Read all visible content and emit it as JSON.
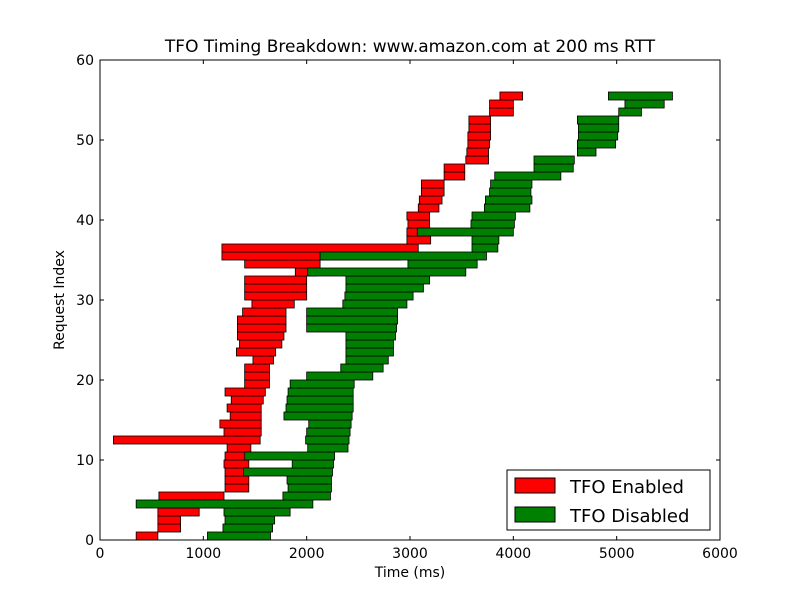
{
  "chart_data": {
    "type": "bar",
    "orientation": "horizontal",
    "title": "TFO Timing Breakdown: www.amazon.com at 200 ms RTT",
    "xlabel": "Time (ms)",
    "ylabel": "Request Index",
    "xlim": [
      0,
      6000
    ],
    "ylim": [
      0,
      60
    ],
    "xticks": [
      "0",
      "1000",
      "2000",
      "3000",
      "4000",
      "5000",
      "6000"
    ],
    "yticks": [
      "0",
      "10",
      "20",
      "30",
      "40",
      "50",
      "60"
    ],
    "grid": false,
    "legend_position": "bottom-right",
    "series": [
      {
        "name": "TFO Enabled",
        "color": "#ff0000",
        "bars": [
          [
            350,
            560
          ],
          [
            560,
            780
          ],
          [
            560,
            780
          ],
          [
            560,
            960
          ],
          [
            570,
            1200
          ],
          [
            570,
            1200
          ],
          [
            1210,
            1440
          ],
          [
            1210,
            1440
          ],
          [
            1210,
            1440
          ],
          [
            1200,
            1440
          ],
          [
            1210,
            1440
          ],
          [
            1230,
            1460
          ],
          [
            130,
            1550
          ],
          [
            1200,
            1560
          ],
          [
            1160,
            1560
          ],
          [
            1260,
            1560
          ],
          [
            1230,
            1560
          ],
          [
            1270,
            1580
          ],
          [
            1210,
            1600
          ],
          [
            1400,
            1640
          ],
          [
            1400,
            1640
          ],
          [
            1400,
            1640
          ],
          [
            1480,
            1680
          ],
          [
            1320,
            1700
          ],
          [
            1350,
            1760
          ],
          [
            1330,
            1780
          ],
          [
            1330,
            1800
          ],
          [
            1330,
            1800
          ],
          [
            1380,
            1800
          ],
          [
            1470,
            1880
          ],
          [
            1400,
            2000
          ],
          [
            1400,
            2000
          ],
          [
            1400,
            2000
          ],
          [
            1890,
            2100
          ],
          [
            1400,
            2130
          ],
          [
            1180,
            2910
          ],
          [
            1180,
            3080
          ],
          [
            2970,
            3200
          ],
          [
            2970,
            3200
          ],
          [
            2980,
            3190
          ],
          [
            2970,
            3190
          ],
          [
            3080,
            3280
          ],
          [
            3090,
            3310
          ],
          [
            3110,
            3330
          ],
          [
            3110,
            3330
          ],
          [
            3330,
            3530
          ],
          [
            3330,
            3530
          ],
          [
            3540,
            3760
          ],
          [
            3550,
            3760
          ],
          [
            3560,
            3770
          ],
          [
            3560,
            3780
          ],
          [
            3570,
            3780
          ],
          [
            3570,
            3780
          ],
          [
            3770,
            4000
          ],
          [
            3770,
            4000
          ],
          [
            3870,
            4090
          ]
        ]
      },
      {
        "name": "TFO Disabled",
        "color": "#008000",
        "bars": [
          [
            1040,
            1650
          ],
          [
            1190,
            1670
          ],
          [
            1210,
            1690
          ],
          [
            1200,
            1840
          ],
          [
            350,
            2060
          ],
          [
            1770,
            2230
          ],
          [
            1820,
            2240
          ],
          [
            1810,
            2240
          ],
          [
            1390,
            2250
          ],
          [
            1860,
            2260
          ],
          [
            1400,
            2270
          ],
          [
            2010,
            2400
          ],
          [
            1990,
            2410
          ],
          [
            2000,
            2420
          ],
          [
            2020,
            2430
          ],
          [
            1780,
            2440
          ],
          [
            1800,
            2450
          ],
          [
            1810,
            2450
          ],
          [
            1820,
            2450
          ],
          [
            1840,
            2460
          ],
          [
            2000,
            2640
          ],
          [
            2330,
            2740
          ],
          [
            2380,
            2790
          ],
          [
            2380,
            2840
          ],
          [
            2380,
            2840
          ],
          [
            2380,
            2860
          ],
          [
            2000,
            2870
          ],
          [
            2000,
            2880
          ],
          [
            2000,
            2880
          ],
          [
            2350,
            2970
          ],
          [
            2370,
            3030
          ],
          [
            2380,
            3130
          ],
          [
            2380,
            3190
          ],
          [
            2010,
            3540
          ],
          [
            2980,
            3650
          ],
          [
            2130,
            3740
          ],
          [
            3600,
            3850
          ],
          [
            3600,
            3860
          ],
          [
            3070,
            4000
          ],
          [
            3590,
            4010
          ],
          [
            3600,
            4020
          ],
          [
            3720,
            4160
          ],
          [
            3730,
            4180
          ],
          [
            3770,
            4170
          ],
          [
            3780,
            4180
          ],
          [
            3820,
            4460
          ],
          [
            4200,
            4580
          ],
          [
            4200,
            4590
          ],
          [
            4620,
            4800
          ],
          [
            4620,
            4990
          ],
          [
            4630,
            5010
          ],
          [
            4630,
            5020
          ],
          [
            4620,
            5020
          ],
          [
            5020,
            5240
          ],
          [
            5080,
            5460
          ],
          [
            4920,
            5540
          ]
        ]
      }
    ]
  }
}
